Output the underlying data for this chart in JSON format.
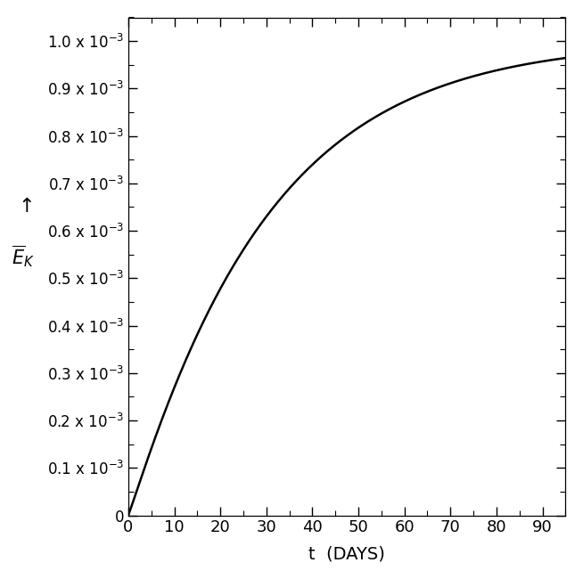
{
  "title": "",
  "xlabel": "t  (DAYS)",
  "xlim": [
    0,
    95
  ],
  "ylim": [
    0,
    0.00105
  ],
  "xticks": [
    0,
    10,
    20,
    30,
    40,
    50,
    60,
    70,
    80,
    90
  ],
  "ytick_values": [
    0,
    0.0001,
    0.0002,
    0.0003,
    0.0004,
    0.0005,
    0.0006,
    0.0007,
    0.0008,
    0.0009,
    0.001
  ],
  "curve_color": "#000000",
  "curve_linewidth": 1.8,
  "background_color": "#ffffff",
  "A": 0.001,
  "k": 0.02796,
  "p": 1.05,
  "figsize": [
    6.54,
    6.5
  ],
  "dpi": 100
}
